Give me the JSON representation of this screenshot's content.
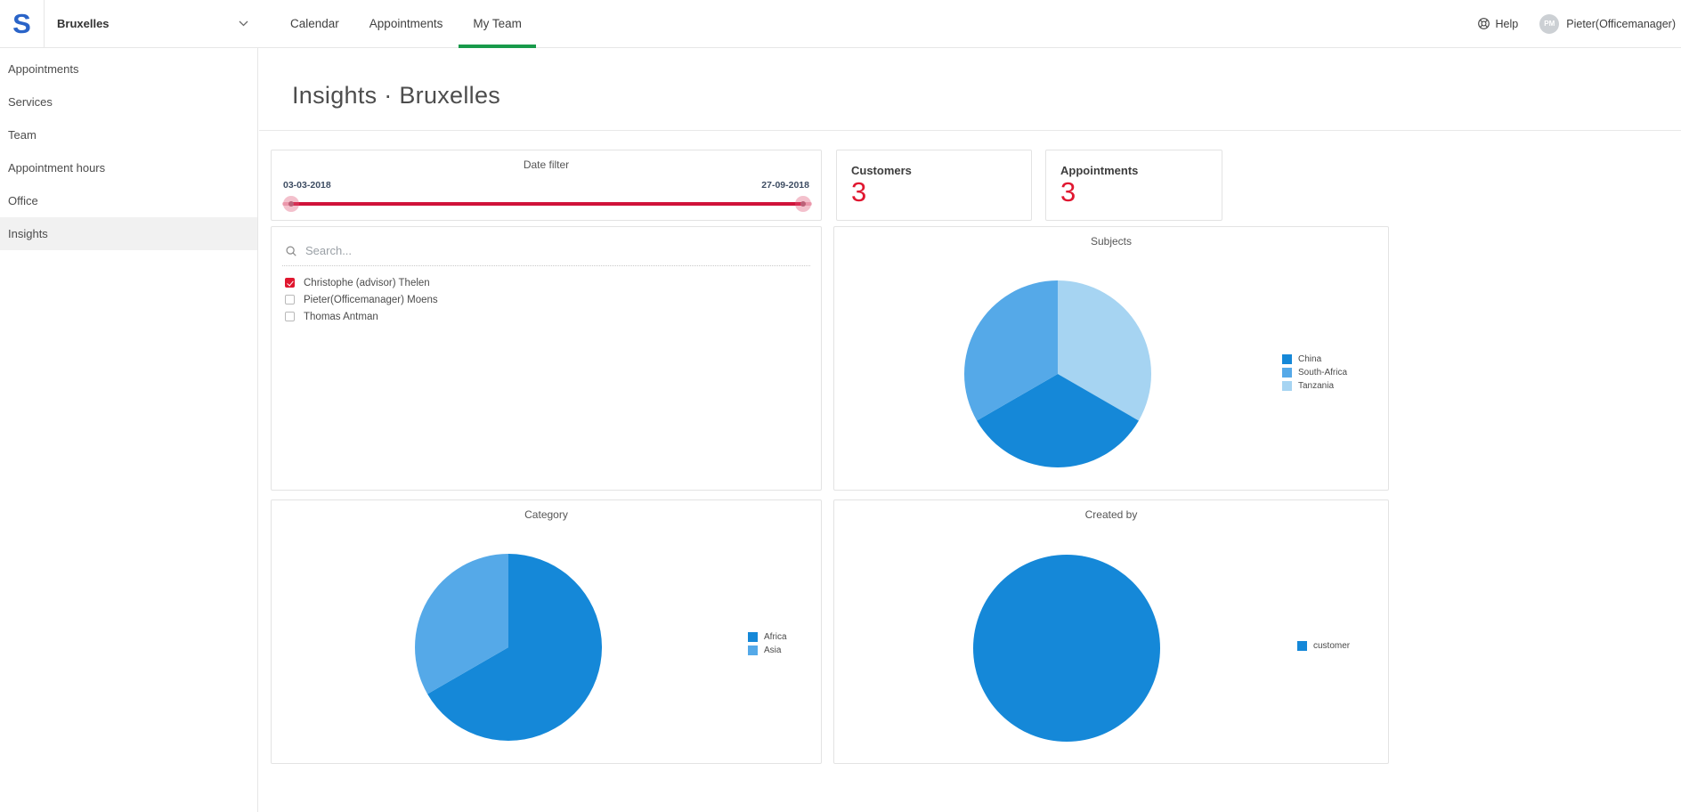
{
  "topbar": {
    "logo": "S",
    "office_selector": {
      "value": "Bruxelles"
    },
    "tabs": [
      {
        "label": "Calendar",
        "active": false
      },
      {
        "label": "Appointments",
        "active": false
      },
      {
        "label": "My Team",
        "active": true
      }
    ],
    "help_label": "Help",
    "user": {
      "initials": "PM",
      "name": "Pieter(Officemanager)"
    }
  },
  "sidebar": {
    "items": [
      {
        "label": "Appointments",
        "active": false
      },
      {
        "label": "Services",
        "active": false
      },
      {
        "label": "Team",
        "active": false
      },
      {
        "label": "Appointment hours",
        "active": false
      },
      {
        "label": "Office",
        "active": false
      },
      {
        "label": "Insights",
        "active": true
      }
    ]
  },
  "page": {
    "title": "Insights · Bruxelles"
  },
  "date_filter": {
    "title": "Date filter",
    "start": "03-03-2018",
    "end": "27-09-2018"
  },
  "stats": [
    {
      "label": "Customers",
      "value": "3"
    },
    {
      "label": "Appointments",
      "value": "3"
    }
  ],
  "team_filter": {
    "search_placeholder": "Search...",
    "members": [
      {
        "name": "Christophe (advisor) Thelen",
        "checked": true
      },
      {
        "name": "Pieter(Officemanager) Moens",
        "checked": false
      },
      {
        "name": "Thomas Antman",
        "checked": false
      }
    ]
  },
  "colors": {
    "accent_green": "#189a4a",
    "stat_red": "#e01730",
    "slider_red": "#d0123a",
    "slider_track_pink": "#f2bcc8",
    "checkbox_red": "#e0172f",
    "pie_dark_blue": "#1588d8",
    "pie_medium_blue": "#55a9e8",
    "pie_light_blue": "#a6d4f2",
    "logo_blue": "#2a64c8"
  },
  "chart_data": [
    {
      "id": "subjects",
      "type": "pie",
      "title": "Subjects",
      "slices": [
        {
          "label": "China",
          "value": 1,
          "color": "#1588d8"
        },
        {
          "label": "South-Africa",
          "value": 1,
          "color": "#55a9e8"
        },
        {
          "label": "Tanzania",
          "value": 1,
          "color": "#a6d4f2"
        }
      ],
      "draw_order": [
        2,
        0,
        1
      ],
      "legend_position": "right"
    },
    {
      "id": "category",
      "type": "pie",
      "title": "Category",
      "slices": [
        {
          "label": "Africa",
          "value": 2,
          "color": "#1588d8"
        },
        {
          "label": "Asia",
          "value": 1,
          "color": "#55a9e8"
        }
      ],
      "draw_order": [
        0,
        1
      ],
      "legend_position": "right"
    },
    {
      "id": "created_by",
      "type": "pie",
      "title": "Created by",
      "slices": [
        {
          "label": "customer",
          "value": 3,
          "color": "#1588d8"
        }
      ],
      "draw_order": [
        0
      ],
      "legend_position": "right"
    }
  ]
}
